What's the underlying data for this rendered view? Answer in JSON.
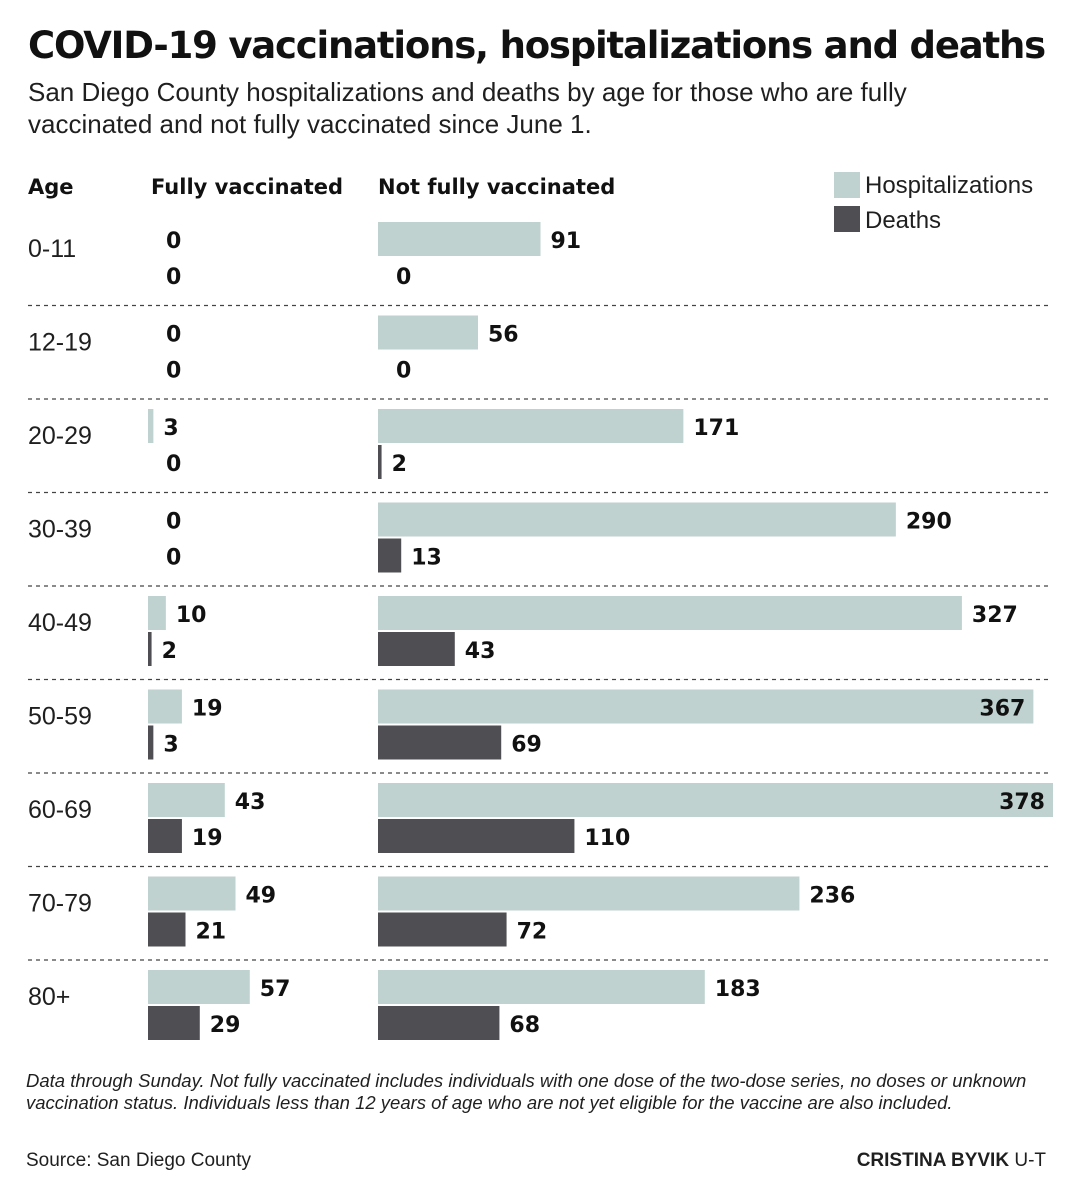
{
  "chart_data": {
    "type": "bar",
    "title": "COVID-19 vaccinations, hospitalizations and deaths",
    "subtitle": "San Diego County hospitalizations and deaths by age for those who are fully vaccinated and not fully vaccinated since June 1.",
    "age_header": "Age",
    "group_headers": [
      "Fully vaccinated",
      "Not fully vaccinated"
    ],
    "categories": [
      "0-11",
      "12-19",
      "20-29",
      "30-39",
      "40-49",
      "50-59",
      "60-69",
      "70-79",
      "80+"
    ],
    "groups": [
      {
        "name": "Fully vaccinated",
        "series": [
          {
            "name": "Hospitalizations",
            "values": [
              0,
              0,
              3,
              0,
              10,
              19,
              43,
              49,
              57
            ]
          },
          {
            "name": "Deaths",
            "values": [
              0,
              0,
              0,
              0,
              2,
              3,
              19,
              21,
              29
            ]
          }
        ]
      },
      {
        "name": "Not fully vaccinated",
        "series": [
          {
            "name": "Hospitalizations",
            "values": [
              91,
              56,
              171,
              290,
              327,
              367,
              378,
              236,
              183
            ]
          },
          {
            "name": "Deaths",
            "values": [
              0,
              0,
              2,
              13,
              43,
              69,
              110,
              72,
              68
            ]
          }
        ]
      }
    ],
    "legend": [
      {
        "label": "Hospitalizations",
        "color": "#bfd2cf"
      },
      {
        "label": "Deaths",
        "color": "#4f4f53"
      }
    ],
    "legend_position": "top-right",
    "xlim": [
      0,
      378
    ]
  },
  "footnote": "Data through Sunday. Not fully vaccinated includes individuals with one dose of the two-dose series, no doses or unknown vaccination status. Individuals less than 12 years of age who are not yet eligible for the vaccine are also included.",
  "source": "Source: San Diego County",
  "credit": {
    "name": "CRISTINA BYVIK",
    "org": "U-T"
  }
}
